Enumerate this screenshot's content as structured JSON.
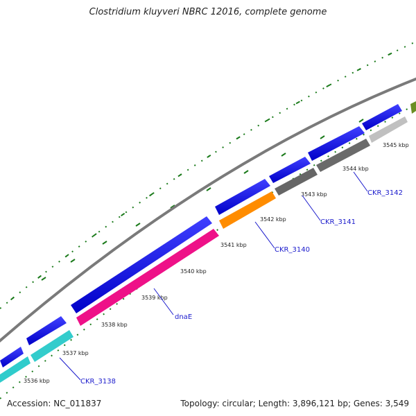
{
  "title": "Clostridium kluyveri NBRC 12016, complete genome",
  "footer": {
    "accession": "Accession: NC_011837",
    "summary": "Topology: circular; Length: 3,896,121 bp; Genes: 3,549"
  },
  "ticks": [
    {
      "label": "3536 kbp"
    },
    {
      "label": "3537 kbp"
    },
    {
      "label": "3538 kbp"
    },
    {
      "label": "3539 kbp"
    },
    {
      "label": "3540 kbp"
    },
    {
      "label": "3541 kbp"
    },
    {
      "label": "3542 kbp"
    },
    {
      "label": "3543 kbp"
    },
    {
      "label": "3544 kbp"
    },
    {
      "label": "3545 kbp"
    }
  ],
  "gene_labels": [
    {
      "label": "CKR_3138"
    },
    {
      "label": "dnaE"
    },
    {
      "label": "CKR_3140"
    },
    {
      "label": "CKR_3141"
    },
    {
      "label": "CKR_3142"
    }
  ],
  "colors": {
    "backbone": "#7a7a7a",
    "forward_strand": "#0000e6",
    "cyan_gene": "#33cccc",
    "magenta_gene": "#ee1188",
    "orange_gene": "#ff8c00",
    "grey_gene": "#666666",
    "light_grey_gene": "#c0c0c0",
    "olive_gene": "#6b8e23",
    "tick_green": "#1a7a1a",
    "label_blue": "#1a1acc"
  }
}
